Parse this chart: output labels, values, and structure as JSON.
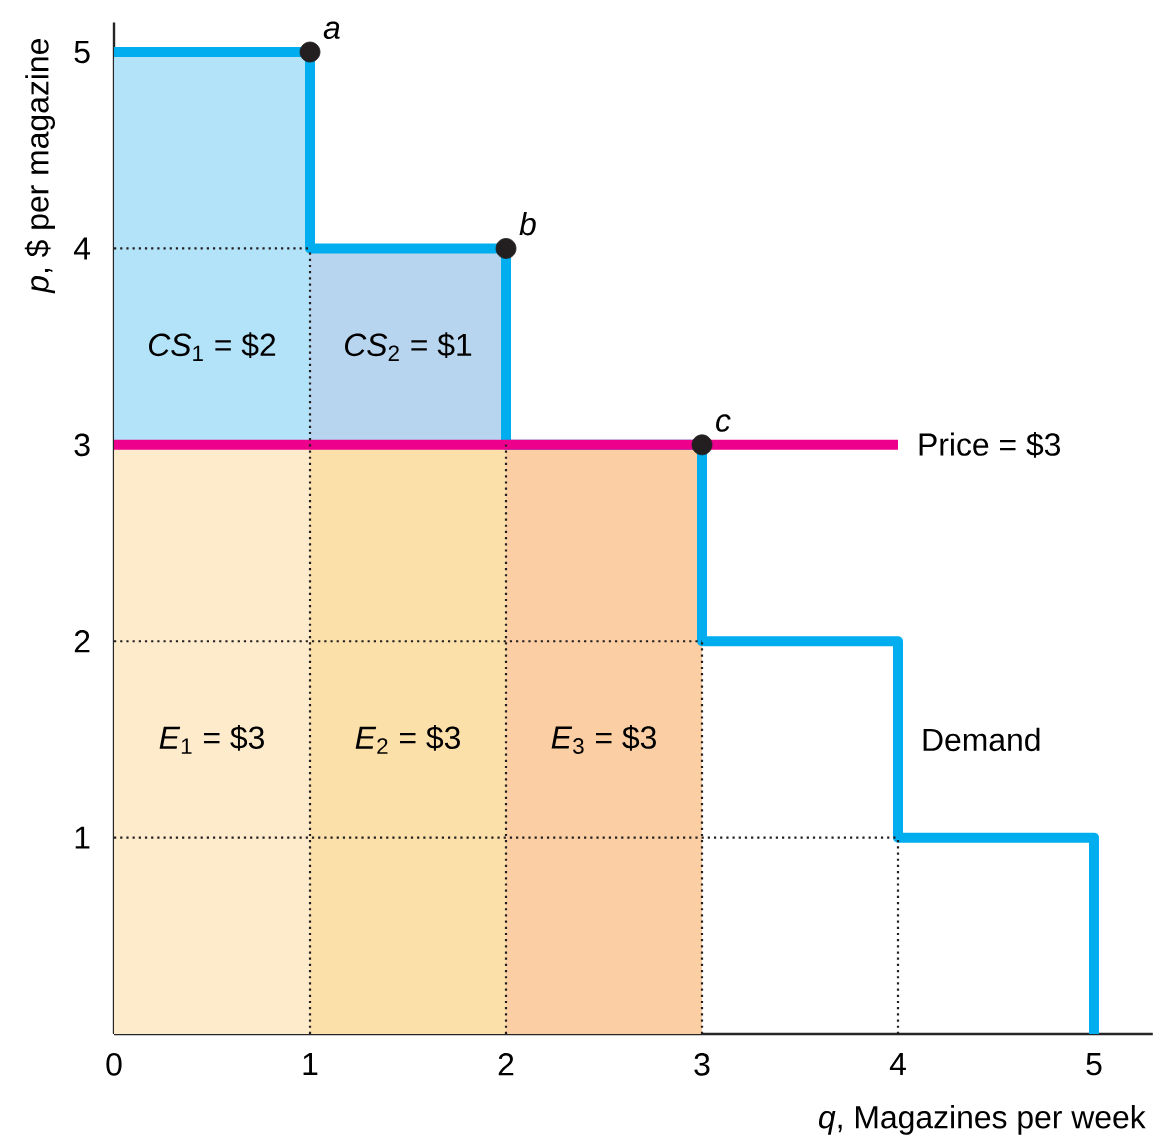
{
  "chart_data": {
    "type": "bar",
    "stacked": true,
    "xlabel": "*q*, Magazines per week",
    "ylabel": "*p*, $ per magazine",
    "xlim": [
      0,
      5.3
    ],
    "ylim": [
      0,
      5.15
    ],
    "xticks": [
      0,
      1,
      2,
      3,
      4,
      5
    ],
    "yticks": [
      1,
      2,
      3,
      4,
      5
    ],
    "series": [
      {
        "x": [
          0.5,
          1.5,
          2.5
        ],
        "values": [
          3,
          3,
          3
        ],
        "colors": [
          "#fdebcb",
          "#fce0aa",
          "#fbcfa3"
        ],
        "value_labels": [
          "*E*$_{1}$ = $3",
          "*E*$_{2}$ = $3",
          "*E*$_{3}$ = $3"
        ]
      },
      {
        "x": [
          0.5,
          1.5,
          2.5
        ],
        "values": [
          2,
          1,
          0
        ],
        "colors": [
          "#b3e3f8",
          "#b8d5ef",
          null
        ],
        "value_labels": [
          "*CS*$_{1}$ = $2",
          "*CS*$_{2}$ = $1",
          null
        ]
      },
      {
        "name": "Demand",
        "type": "step",
        "color": "#00aeef",
        "x": [
          0,
          1,
          2,
          3,
          4,
          5
        ],
        "values": [
          5,
          4,
          3,
          2,
          1,
          0
        ]
      },
      {
        "name": "Price =  $3",
        "type": "line",
        "color": "#ec008c",
        "x": [
          0,
          4
        ],
        "values": [
          3,
          3
        ]
      },
      {
        "type": "line",
        "line_style": "dotted",
        "color": "#231f20",
        "x": [
          1,
          1
        ],
        "values": [
          0,
          4
        ]
      },
      {
        "type": "line",
        "line_style": "dotted",
        "color": "#231f20",
        "x": [
          2,
          2
        ],
        "values": [
          0,
          3
        ]
      },
      {
        "type": "line",
        "line_style": "dotted",
        "color": "#231f20",
        "x": [
          3,
          3
        ],
        "values": [
          0,
          2
        ]
      },
      {
        "type": "line",
        "line_style": "dotted",
        "color": "#231f20",
        "x": [
          4,
          4
        ],
        "values": [
          0,
          1
        ]
      },
      {
        "type": "line",
        "line_style": "dotted",
        "color": "#231f20",
        "x": [
          0,
          1
        ],
        "values": [
          4,
          4
        ]
      },
      {
        "type": "line",
        "line_style": "dotted",
        "color": "#231f20",
        "x": [
          0,
          3
        ],
        "values": [
          2,
          2
        ]
      },
      {
        "type": "line",
        "line_style": "dotted",
        "color": "#231f20",
        "x": [
          0,
          4
        ],
        "values": [
          1,
          1
        ]
      },
      {
        "type": "scatter",
        "color": "#231f20",
        "marker": "circle",
        "x": [
          1,
          2,
          3
        ],
        "values": [
          5,
          4,
          3
        ]
      }
    ],
    "annotations": [
      {
        "text": "a",
        "x": 1,
        "y": 5
      },
      {
        "text": "b",
        "x": 2,
        "y": 4
      },
      {
        "text": "c",
        "x": 3,
        "y": 3
      }
    ]
  }
}
